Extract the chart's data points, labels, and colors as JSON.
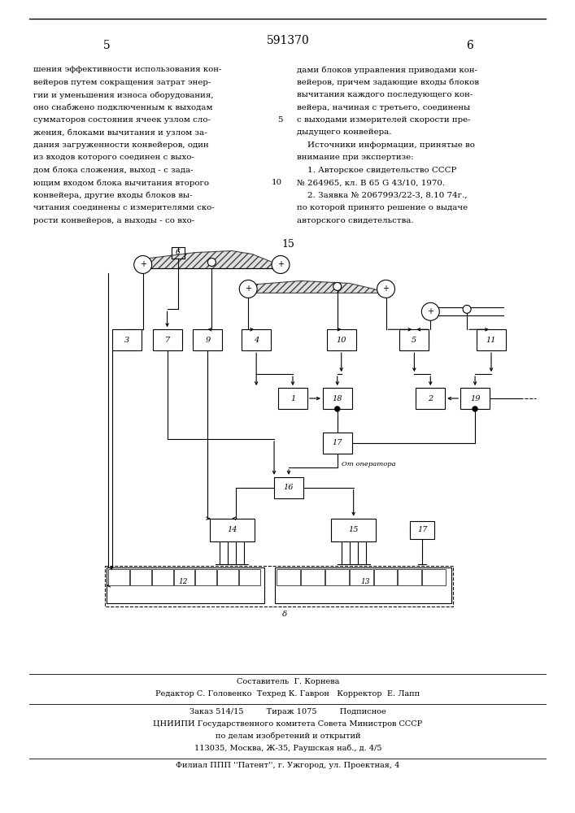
{
  "page_num_center": "591370",
  "page_num_left": "5",
  "page_num_right": "6",
  "fig_num": "15",
  "left_column_lines": [
    "шения эффективности использования кон-",
    "вейеров путем сокращения затрат энер-",
    "гии и уменьшения износа оборудования,",
    "оно снабжено подключенным к выходам",
    "сумматоров состояния ячеек узлом сло-",
    "жения, блоками вычитания и узлом за-",
    "дания загруженности конвейеров, один",
    "из входов которого соединен с выхо-",
    "дом блока сложения, выход - с зада-",
    "ющим входом блока вычитания второго",
    "конвейера, другие входы блоков вы-",
    "читания соединены с измерителями ско-",
    "рости конвейеров, а выходы - со вхо-"
  ],
  "right_column_lines": [
    "дами блоков управления приводами кон-",
    "вейеров, причем задающие входы блоков",
    "вычитания каждого последующего кон-",
    "вейера, начиная с третьего, соединены",
    "с выходами измерителей скорости пре-",
    "дыдущего конвейера.",
    "    Источники информации, принятые во",
    "внимание при экспертизе:",
    "    1. Авторское свидетельство СССР",
    "№ 264965, кл. В 65 G 43/10, 1970.",
    "    2. Заявка № 2067993/22-3, 8.10 74г.,",
    "по которой принято решение о выдаче",
    "авторского свидетельства."
  ],
  "line_numbers": {
    "5": 4,
    "10": 9
  },
  "footer_line1": "Составитель  Г. Корнева",
  "footer_line2": "Редактор С. Головенко  Техред К. Гаврон   Корректор  Е. Лапп",
  "footer_line3": "Заказ 514/15         Тираж 1075         Подписное",
  "footer_line4": "ЦНИИПИ Государственного комитета Совета Министров СССР",
  "footer_line5": "по делам изобретений и открытий",
  "footer_line6": "113035, Москва, Ж-35, Раушская наб., д. 4/5",
  "footer_line7": "Филиал ППП ''Патент'', г. Ужгород, ул. Проектная, 4",
  "bg_color": "#ffffff",
  "text_color": "#000000"
}
